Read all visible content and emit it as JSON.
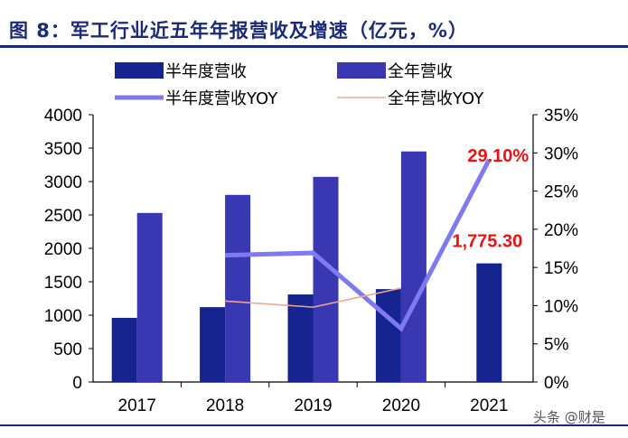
{
  "title": "图 8：军工行业近五年年报营收及增速（亿元，%）",
  "watermark": "头条 @财是",
  "chart_data": {
    "type": "bar",
    "categories": [
      "2017",
      "2018",
      "2019",
      "2020",
      "2021"
    ],
    "series": [
      {
        "name": "半年度营收",
        "kind": "bar",
        "axis": "left",
        "color": "#15248f",
        "values": [
          960,
          1120,
          1310,
          1390,
          1775.3
        ]
      },
      {
        "name": "全年营收",
        "kind": "bar",
        "axis": "left",
        "color": "#3a37b2",
        "values": [
          2530,
          2800,
          3070,
          3450,
          null
        ]
      },
      {
        "name": "半年度营收YOY",
        "kind": "line",
        "axis": "right",
        "color": "#7f7af2",
        "values": [
          null,
          16.6,
          16.9,
          7.0,
          29.1
        ]
      },
      {
        "name": "全年营收YOY",
        "kind": "line",
        "axis": "right",
        "color": "#f0a58e",
        "values": [
          null,
          10.6,
          9.8,
          12.3,
          null
        ]
      }
    ],
    "ylim": [
      0,
      4000
    ],
    "yticks": [
      "0",
      "500",
      "1000",
      "1500",
      "2000",
      "2500",
      "3000",
      "3500",
      "4000"
    ],
    "y2lim": [
      0,
      35
    ],
    "y2ticks": [
      "0%",
      "5%",
      "10%",
      "15%",
      "20%",
      "25%",
      "30%",
      "35%"
    ],
    "annotations": [
      {
        "text": "1,775.30",
        "target": "半年度营收",
        "category": "2021"
      },
      {
        "text": "29.10%",
        "target": "半年度营收YOY",
        "category": "2021"
      }
    ],
    "legend_position": "top",
    "grid": false
  }
}
